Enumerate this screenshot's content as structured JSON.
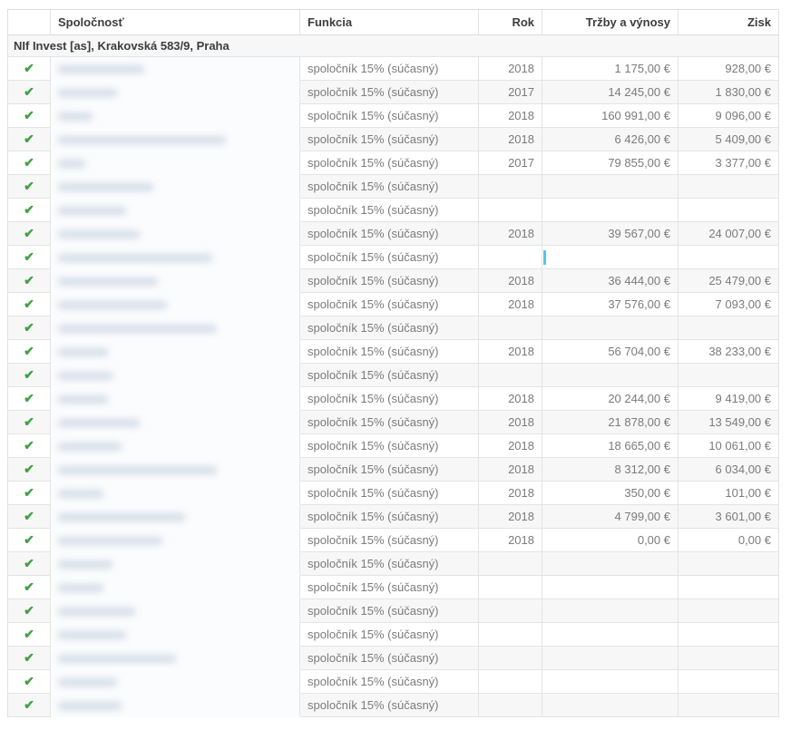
{
  "icons": {
    "check": "✔"
  },
  "colors": {
    "check_green": "#43a047",
    "cursor_blue": "#4fc8f2",
    "zebra_gray": "#f7f7f7",
    "border_gray": "#e4e4e4",
    "text_gray": "#7b7b7b",
    "text_dark": "#3d3d3d"
  },
  "table": {
    "headers": {
      "check": "",
      "spolocnost": "Spoločnosť",
      "funkcia": "Funkcia",
      "rok": "Rok",
      "trzby": "Tržby a výnosy",
      "zisk": "Zisk"
    },
    "group_header": "NIf Invest [as], Krakovská 583/9, Praha",
    "rows": [
      {
        "checked": true,
        "redacted_width": 95,
        "funkcia": "spoločník 15% (súčasný)",
        "rok": "2018",
        "trzby": "1 175,00 €",
        "zisk": "928,00 €"
      },
      {
        "checked": true,
        "redacted_width": 65,
        "funkcia": "spoločník 15% (súčasný)",
        "rok": "2017",
        "trzby": "14 245,00 €",
        "zisk": "1 830,00 €"
      },
      {
        "checked": true,
        "redacted_width": 38,
        "funkcia": "spoločník 15% (súčasný)",
        "rok": "2018",
        "trzby": "160 991,00 €",
        "zisk": "9 096,00 €"
      },
      {
        "checked": true,
        "redacted_width": 185,
        "funkcia": "spoločník 15% (súčasný)",
        "rok": "2018",
        "trzby": "6 426,00 €",
        "zisk": "5 409,00 €"
      },
      {
        "checked": true,
        "redacted_width": 30,
        "funkcia": "spoločník 15% (súčasný)",
        "rok": "2017",
        "trzby": "79 855,00 €",
        "zisk": "3 377,00 €"
      },
      {
        "checked": true,
        "redacted_width": 105,
        "funkcia": "spoločník 15% (súčasný)",
        "rok": "",
        "trzby": "",
        "zisk": ""
      },
      {
        "checked": true,
        "redacted_width": 75,
        "funkcia": "spoločník 15% (súčasný)",
        "rok": "",
        "trzby": "",
        "zisk": ""
      },
      {
        "checked": true,
        "redacted_width": 90,
        "funkcia": "spoločník 15% (súčasný)",
        "rok": "2018",
        "trzby": "39 567,00 €",
        "zisk": "24 007,00 €"
      },
      {
        "checked": true,
        "redacted_width": 170,
        "funkcia": "spoločník 15% (súčasný)",
        "rok": "",
        "trzby": "",
        "zisk": "",
        "cursor": true
      },
      {
        "checked": true,
        "redacted_width": 110,
        "funkcia": "spoločník 15% (súčasný)",
        "rok": "2018",
        "trzby": "36 444,00 €",
        "zisk": "25 479,00 €"
      },
      {
        "checked": true,
        "redacted_width": 120,
        "funkcia": "spoločník 15% (súčasný)",
        "rok": "2018",
        "trzby": "37 576,00 €",
        "zisk": "7 093,00 €"
      },
      {
        "checked": true,
        "redacted_width": 175,
        "funkcia": "spoločník 15% (súčasný)",
        "rok": "",
        "trzby": "",
        "zisk": ""
      },
      {
        "checked": true,
        "redacted_width": 55,
        "funkcia": "spoločník 15% (súčasný)",
        "rok": "2018",
        "trzby": "56 704,00 €",
        "zisk": "38 233,00 €"
      },
      {
        "checked": true,
        "redacted_width": 60,
        "funkcia": "spoločník 15% (súčasný)",
        "rok": "",
        "trzby": "",
        "zisk": ""
      },
      {
        "checked": true,
        "redacted_width": 55,
        "funkcia": "spoločník 15% (súčasný)",
        "rok": "2018",
        "trzby": "20 244,00 €",
        "zisk": "9 419,00 €"
      },
      {
        "checked": true,
        "redacted_width": 90,
        "funkcia": "spoločník 15% (súčasný)",
        "rok": "2018",
        "trzby": "21 878,00 €",
        "zisk": "13 549,00 €"
      },
      {
        "checked": true,
        "redacted_width": 70,
        "funkcia": "spoločník 15% (súčasný)",
        "rok": "2018",
        "trzby": "18 665,00 €",
        "zisk": "10 061,00 €"
      },
      {
        "checked": true,
        "redacted_width": 175,
        "funkcia": "spoločník 15% (súčasný)",
        "rok": "2018",
        "trzby": "8 312,00 €",
        "zisk": "6 034,00 €"
      },
      {
        "checked": true,
        "redacted_width": 50,
        "funkcia": "spoločník 15% (súčasný)",
        "rok": "2018",
        "trzby": "350,00 €",
        "zisk": "101,00 €"
      },
      {
        "checked": true,
        "redacted_width": 140,
        "funkcia": "spoločník 15% (súčasný)",
        "rok": "2018",
        "trzby": "4 799,00 €",
        "zisk": "3 601,00 €"
      },
      {
        "checked": true,
        "redacted_width": 115,
        "funkcia": "spoločník 15% (súčasný)",
        "rok": "2018",
        "trzby": "0,00 €",
        "zisk": "0,00 €"
      },
      {
        "checked": true,
        "redacted_width": 60,
        "funkcia": "spoločník 15% (súčasný)",
        "rok": "",
        "trzby": "",
        "zisk": ""
      },
      {
        "checked": true,
        "redacted_width": 50,
        "funkcia": "spoločník 15% (súčasný)",
        "rok": "",
        "trzby": "",
        "zisk": ""
      },
      {
        "checked": true,
        "redacted_width": 85,
        "funkcia": "spoločník 15% (súčasný)",
        "rok": "",
        "trzby": "",
        "zisk": ""
      },
      {
        "checked": true,
        "redacted_width": 75,
        "funkcia": "spoločník 15% (súčasný)",
        "rok": "",
        "trzby": "",
        "zisk": ""
      },
      {
        "checked": true,
        "redacted_width": 130,
        "funkcia": "spoločník 15% (súčasný)",
        "rok": "",
        "trzby": "",
        "zisk": ""
      },
      {
        "checked": true,
        "redacted_width": 65,
        "funkcia": "spoločník 15% (súčasný)",
        "rok": "",
        "trzby": "",
        "zisk": ""
      },
      {
        "checked": true,
        "redacted_width": 70,
        "funkcia": "spoločník 15% (súčasný)",
        "rok": "",
        "trzby": "",
        "zisk": ""
      }
    ]
  }
}
